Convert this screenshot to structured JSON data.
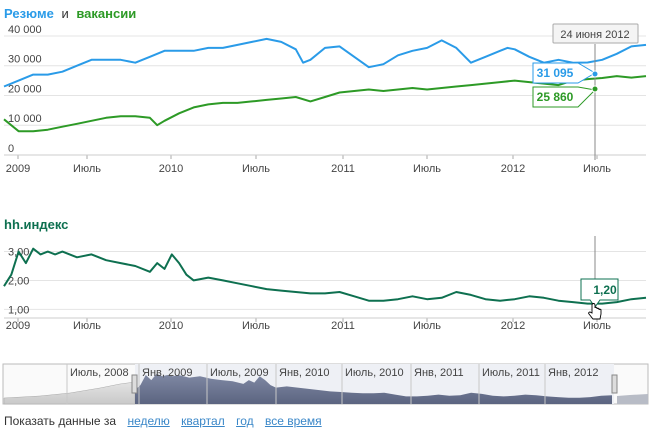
{
  "top_chart": {
    "title_resume": "Резюме",
    "title_and": "и",
    "title_vacancies": "вакансии",
    "tooltip_date": "24 июня 2012",
    "resume_value": "31 095",
    "vacancy_value": "25 860"
  },
  "bottom_chart": {
    "title": "hh.индекс",
    "tooltip_value": "1,20"
  },
  "navigator": {
    "labels": [
      "Июль, 2008",
      "Янв, 2009",
      "Июль, 2009",
      "Янв, 2010",
      "Июль, 2010",
      "Янв, 2011",
      "Июль, 2011",
      "Янв, 2012"
    ]
  },
  "footer": {
    "prefix": "Показать данные за",
    "links": [
      "неделю",
      "квартал",
      "год",
      "все время"
    ]
  },
  "colors": {
    "resume": "#2a9be8",
    "vacancy": "#2d9a26",
    "index": "#0e7050",
    "navigator_fill": "#6c7590"
  },
  "chart_data": [
    {
      "type": "line",
      "title": "Резюме и вакансии",
      "x_ticks": [
        "2009",
        "Июль",
        "2010",
        "Июль",
        "2011",
        "Июль",
        "2012",
        "Июль"
      ],
      "y_ticks": [
        "0",
        "10 000",
        "20 000",
        "30 000",
        "40 000"
      ],
      "ylim": [
        0,
        42000
      ],
      "xlim": [
        0,
        44
      ],
      "series": [
        {
          "name": "Резюме",
          "x": [
            0,
            1,
            2,
            3,
            4,
            5,
            6,
            7,
            8,
            9,
            10,
            11,
            12,
            13,
            14,
            15,
            16,
            17,
            18,
            19,
            20,
            20.5,
            21,
            22,
            23,
            24,
            25,
            26,
            27,
            28,
            29,
            30,
            31,
            32,
            33,
            34,
            34.5,
            35,
            36,
            37,
            38,
            39,
            40,
            41,
            42,
            43,
            44
          ],
          "values": [
            23000,
            25000,
            27000,
            27000,
            28000,
            30000,
            32000,
            32000,
            32000,
            31000,
            33000,
            35000,
            35000,
            35000,
            36000,
            36000,
            37000,
            38000,
            39000,
            38000,
            35500,
            31000,
            32000,
            36000,
            36500,
            33000,
            29500,
            30500,
            33500,
            35000,
            36000,
            38500,
            36000,
            31000,
            33000,
            35000,
            36000,
            35500,
            33000,
            31000,
            32000,
            31000,
            31095,
            32000,
            34000,
            36500,
            37000
          ]
        },
        {
          "name": "Вакансии",
          "x": [
            0,
            1,
            2,
            3,
            4,
            5,
            6,
            7,
            8,
            9,
            10,
            10.5,
            11,
            12,
            13,
            14,
            15,
            16,
            17,
            18,
            19,
            20,
            21,
            22,
            23,
            24,
            25,
            26,
            27,
            28,
            29,
            30,
            31,
            32,
            33,
            34,
            35,
            36,
            37,
            38,
            39,
            40,
            41,
            42,
            43,
            44
          ],
          "values": [
            12000,
            8000,
            8000,
            8500,
            9500,
            10500,
            11500,
            12500,
            13000,
            13000,
            12500,
            10000,
            11500,
            14000,
            16000,
            17000,
            17500,
            17500,
            18000,
            18500,
            19000,
            19500,
            18000,
            19500,
            21000,
            21500,
            22000,
            21500,
            22000,
            22500,
            22000,
            22500,
            23000,
            23500,
            24000,
            24500,
            25000,
            24500,
            24000,
            23500,
            25000,
            25500,
            25860,
            26500,
            26000,
            26500
          ]
        }
      ]
    },
    {
      "type": "line",
      "title": "hh.индекс",
      "x_ticks": [
        "2009",
        "Июль",
        "2010",
        "Июль",
        "2011",
        "Июль",
        "2012",
        "Июль"
      ],
      "y_ticks": [
        "1,00",
        "2,00",
        "3,00"
      ],
      "ylim": [
        0.7,
        3.4
      ],
      "xlim": [
        0,
        44
      ],
      "series": [
        {
          "name": "hh.индекс",
          "x": [
            0,
            0.5,
            1,
            1.5,
            2,
            2.5,
            3,
            3.5,
            4,
            5,
            6,
            7,
            8,
            9,
            10,
            10.5,
            11,
            11.5,
            12,
            12.5,
            13,
            14,
            15,
            16,
            17,
            18,
            19,
            20,
            21,
            22,
            23,
            24,
            25,
            26,
            27,
            28,
            29,
            30,
            31,
            32,
            33,
            34,
            35,
            36,
            37,
            38,
            39,
            40,
            41,
            42,
            43,
            44
          ],
          "values": [
            1.8,
            2.2,
            3.0,
            2.6,
            3.1,
            2.9,
            3.0,
            2.9,
            3.0,
            2.8,
            2.9,
            2.7,
            2.6,
            2.5,
            2.3,
            2.6,
            2.4,
            2.9,
            2.6,
            2.2,
            2.0,
            2.1,
            2.0,
            1.9,
            1.8,
            1.7,
            1.65,
            1.6,
            1.55,
            1.55,
            1.6,
            1.45,
            1.3,
            1.3,
            1.35,
            1.45,
            1.35,
            1.4,
            1.6,
            1.5,
            1.35,
            1.3,
            1.35,
            1.45,
            1.4,
            1.3,
            1.25,
            1.2,
            1.2,
            1.25,
            1.35,
            1.4
          ]
        }
      ]
    }
  ]
}
